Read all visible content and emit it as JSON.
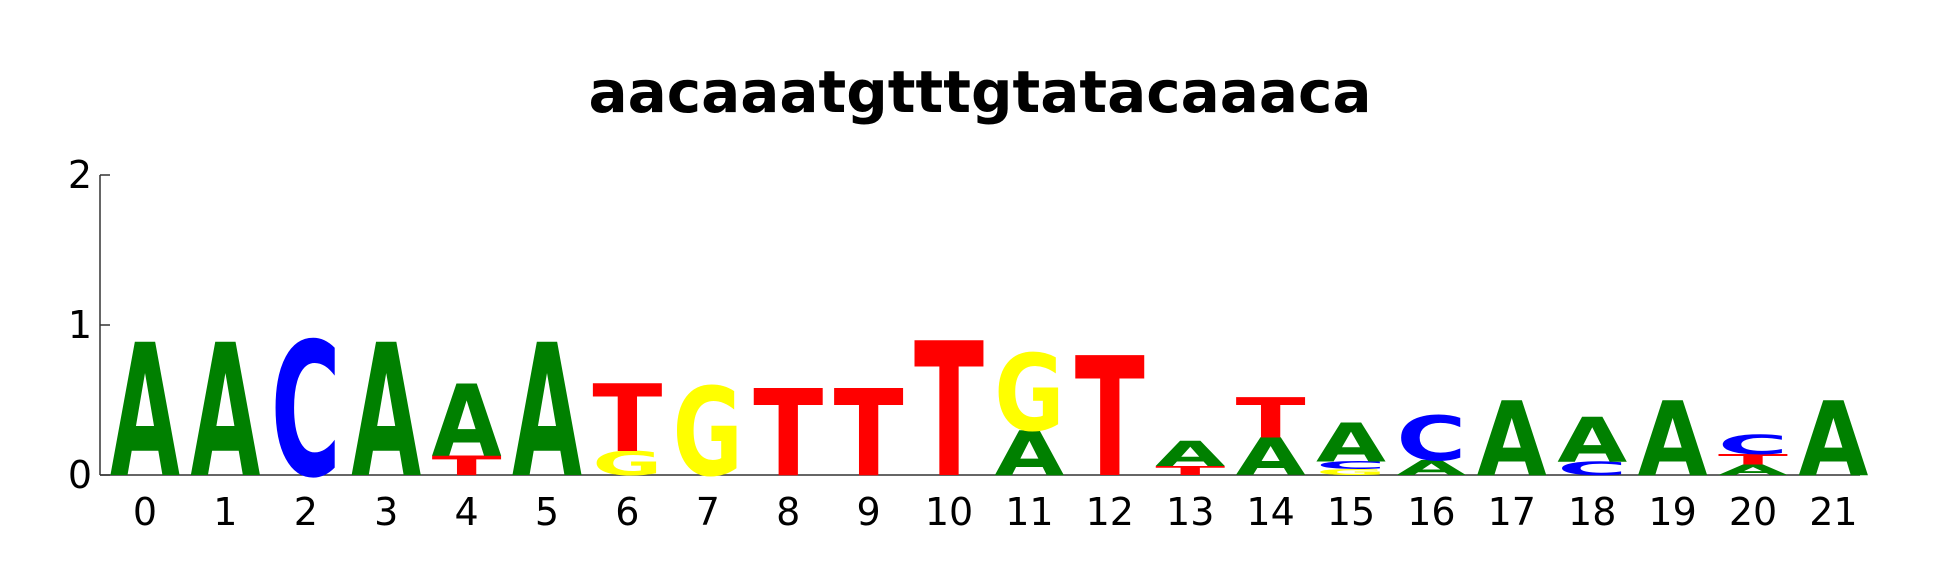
{
  "chart_data": {
    "type": "sequence-logo",
    "title": "aacaaatgtttgtatacaaaca",
    "xlabel": "",
    "ylabel": "",
    "ylim": [
      0,
      2
    ],
    "y_ticks": [
      "0",
      "1",
      "2"
    ],
    "x_ticks": [
      "0",
      "1",
      "2",
      "3",
      "4",
      "5",
      "6",
      "7",
      "8",
      "9",
      "10",
      "11",
      "12",
      "13",
      "14",
      "15",
      "16",
      "17",
      "18",
      "19",
      "20",
      "21"
    ],
    "colors": {
      "A": "#008000",
      "C": "#0000ff",
      "G": "#ffff00",
      "T": "#ff0000"
    },
    "positions": [
      {
        "pos": "0",
        "stack": [
          {
            "base": "A",
            "height": 0.89
          }
        ]
      },
      {
        "pos": "1",
        "stack": [
          {
            "base": "A",
            "height": 0.89
          }
        ]
      },
      {
        "pos": "2",
        "stack": [
          {
            "base": "C",
            "height": 0.9
          }
        ]
      },
      {
        "pos": "3",
        "stack": [
          {
            "base": "A",
            "height": 0.89
          }
        ]
      },
      {
        "pos": "4",
        "stack": [
          {
            "base": "T",
            "height": 0.13
          },
          {
            "base": "A",
            "height": 0.48
          }
        ]
      },
      {
        "pos": "5",
        "stack": [
          {
            "base": "A",
            "height": 0.89
          }
        ]
      },
      {
        "pos": "6",
        "stack": [
          {
            "base": "G",
            "height": 0.16
          },
          {
            "base": "T",
            "height": 0.45
          }
        ]
      },
      {
        "pos": "7",
        "stack": [
          {
            "base": "G",
            "height": 0.59
          }
        ]
      },
      {
        "pos": "8",
        "stack": [
          {
            "base": "T",
            "height": 0.58
          }
        ]
      },
      {
        "pos": "9",
        "stack": [
          {
            "base": "T",
            "height": 0.58
          }
        ]
      },
      {
        "pos": "10",
        "stack": [
          {
            "base": "T",
            "height": 0.9
          }
        ]
      },
      {
        "pos": "11",
        "stack": [
          {
            "base": "A",
            "height": 0.3
          },
          {
            "base": "G",
            "height": 0.51
          }
        ]
      },
      {
        "pos": "12",
        "stack": [
          {
            "base": "T",
            "height": 0.8
          }
        ]
      },
      {
        "pos": "13",
        "stack": [
          {
            "base": "T",
            "height": 0.06
          },
          {
            "base": "A",
            "height": 0.17
          }
        ]
      },
      {
        "pos": "14",
        "stack": [
          {
            "base": "A",
            "height": 0.25
          },
          {
            "base": "T",
            "height": 0.27
          }
        ]
      },
      {
        "pos": "15",
        "stack": [
          {
            "base": "G",
            "height": 0.04
          },
          {
            "base": "C",
            "height": 0.05
          },
          {
            "base": "A",
            "height": 0.26
          }
        ]
      },
      {
        "pos": "16",
        "stack": [
          {
            "base": "A",
            "height": 0.1
          },
          {
            "base": "C",
            "height": 0.3
          }
        ]
      },
      {
        "pos": "17",
        "stack": [
          {
            "base": "A",
            "height": 0.5
          }
        ]
      },
      {
        "pos": "18",
        "stack": [
          {
            "base": "C",
            "height": 0.09
          },
          {
            "base": "A",
            "height": 0.3
          }
        ]
      },
      {
        "pos": "19",
        "stack": [
          {
            "base": "A",
            "height": 0.5
          }
        ]
      },
      {
        "pos": "20",
        "stack": [
          {
            "base": "A",
            "height": 0.07
          },
          {
            "base": "T",
            "height": 0.07
          },
          {
            "base": "C",
            "height": 0.13
          }
        ]
      },
      {
        "pos": "21",
        "stack": [
          {
            "base": "A",
            "height": 0.5
          }
        ]
      }
    ]
  }
}
